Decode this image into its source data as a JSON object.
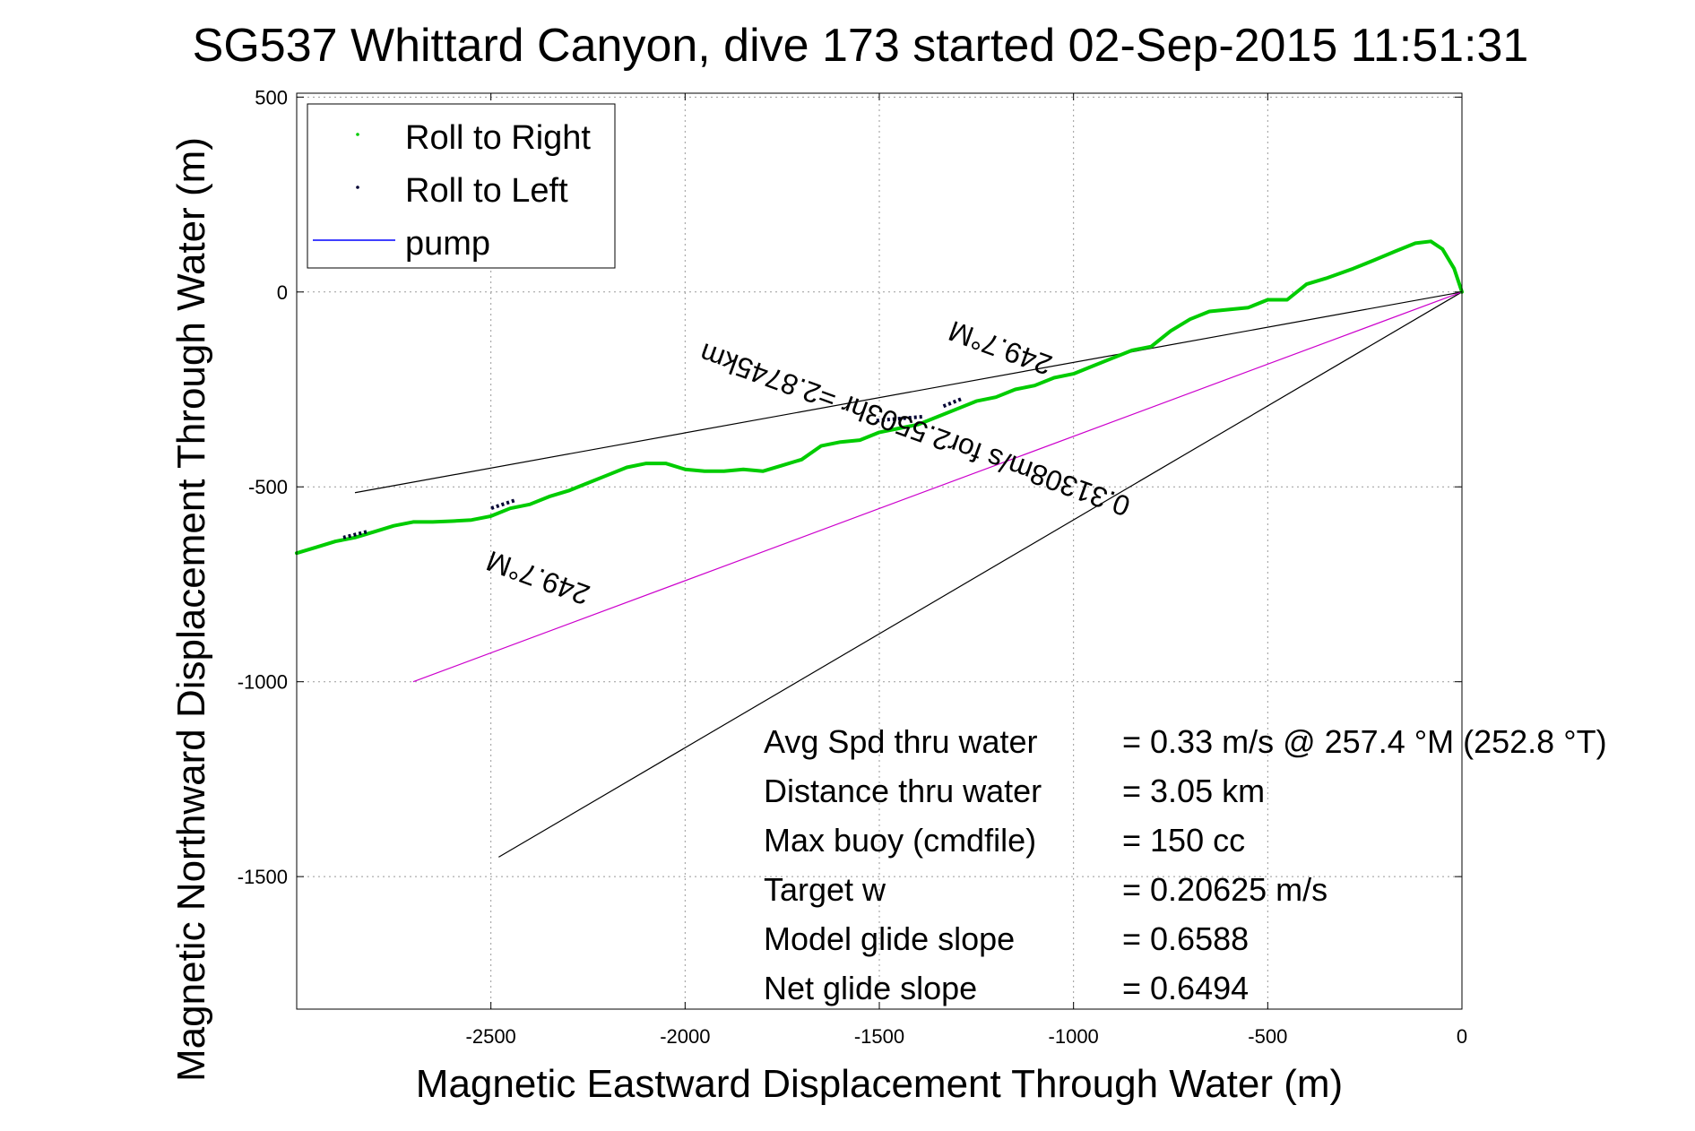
{
  "chart_data": {
    "type": "line",
    "title": "SG537 Whittard Canyon, dive 173 started 02-Sep-2015 11:51:31",
    "xlabel": "Magnetic Eastward Displacement Through Water (m)",
    "ylabel": "Magnetic Northward Displacement Through Water (m)",
    "xlim": [
      -3000,
      0
    ],
    "ylim": [
      -1840,
      510
    ],
    "xticks": [
      -2500,
      -2000,
      -1500,
      -1000,
      -500,
      0
    ],
    "yticks": [
      500,
      0,
      -500,
      -1000,
      -1500
    ],
    "grid": true,
    "legend_position": "top-left",
    "legend": [
      {
        "label": "Roll to Right",
        "color": "#00cc00",
        "marker": "dot"
      },
      {
        "label": "Roll to Left",
        "color": "#000033",
        "marker": "dot"
      },
      {
        "label": "pump",
        "color": "#0000ff",
        "marker": "line"
      }
    ],
    "series": [
      {
        "name": "Roll to Right",
        "color": "#00cc00",
        "x": [
          0,
          -20,
          -50,
          -80,
          -120,
          -170,
          -230,
          -280,
          -350,
          -400,
          -450,
          -500,
          -550,
          -600,
          -650,
          -700,
          -750,
          -800,
          -850,
          -900,
          -950,
          -1000,
          -1050,
          -1100,
          -1150,
          -1200,
          -1250,
          -1300,
          -1350,
          -1400,
          -1450,
          -1500,
          -1550,
          -1600,
          -1650,
          -1700,
          -1750,
          -1800,
          -1850,
          -1900,
          -1950,
          -2000,
          -2050,
          -2100,
          -2150,
          -2200,
          -2250,
          -2300,
          -2350,
          -2400,
          -2450,
          -2500,
          -2550,
          -2600,
          -2650,
          -2700,
          -2750,
          -2800,
          -2850,
          -2900,
          -2950,
          -3000
        ],
        "y": [
          0,
          60,
          110,
          130,
          125,
          105,
          80,
          60,
          35,
          20,
          -20,
          -20,
          -40,
          -45,
          -50,
          -70,
          -100,
          -140,
          -150,
          -170,
          -190,
          -210,
          -220,
          -240,
          -250,
          -270,
          -280,
          -300,
          -320,
          -340,
          -350,
          -360,
          -380,
          -385,
          -395,
          -430,
          -445,
          -460,
          -455,
          -460,
          -460,
          -455,
          -440,
          -440,
          -450,
          -470,
          -490,
          -510,
          -525,
          -545,
          -555,
          -575,
          -585,
          -588,
          -590,
          -590,
          -600,
          -615,
          -630,
          -640,
          -655,
          -670
        ]
      },
      {
        "name": "Roll to Left",
        "color": "#000033",
        "segments": [
          {
            "x": [
              -1290,
              -1340
            ],
            "y": [
              -275,
              -295
            ]
          },
          {
            "x": [
              -1390,
              -1510
            ],
            "y": [
              -320,
              -330
            ]
          },
          {
            "x": [
              -2440,
              -2500
            ],
            "y": [
              -535,
              -555
            ]
          },
          {
            "x": [
              -2820,
              -2880
            ],
            "y": [
              -615,
              -630
            ]
          }
        ]
      }
    ],
    "reference_lines": [
      {
        "color": "#000000",
        "x": [
          0,
          -2850
        ],
        "y": [
          0,
          -515
        ]
      },
      {
        "color": "#000000",
        "x": [
          0,
          -2480
        ],
        "y": [
          0,
          -1450
        ]
      },
      {
        "color": "#cc00cc",
        "x": [
          0,
          -2700
        ],
        "y": [
          0,
          -1000
        ]
      }
    ],
    "rotated_labels": [
      {
        "text": "249.7°M",
        "x": -1180,
        "y": -120,
        "angle": 200
      },
      {
        "text": "0.31308m/s for2.5503hr =2.8745km",
        "x": -1400,
        "y": -330,
        "angle": 200
      },
      {
        "text": "249.7°M",
        "x": -2370,
        "y": -710,
        "angle": 200
      }
    ],
    "annotations": [
      {
        "label": "Avg Spd thru water",
        "value": "=  0.33 m/s @ 257.4 °M (252.8 °T)"
      },
      {
        "label": "Distance thru water",
        "value": "=  3.05 km"
      },
      {
        "label": "Max buoy (cmdfile)",
        "value": "= 150 cc"
      },
      {
        "label": "Target w",
        "value": "= 0.20625 m/s"
      },
      {
        "label": "Model glide slope",
        "value": "= 0.6588"
      },
      {
        "label": "Net glide slope",
        "value": "= 0.6494"
      }
    ]
  }
}
